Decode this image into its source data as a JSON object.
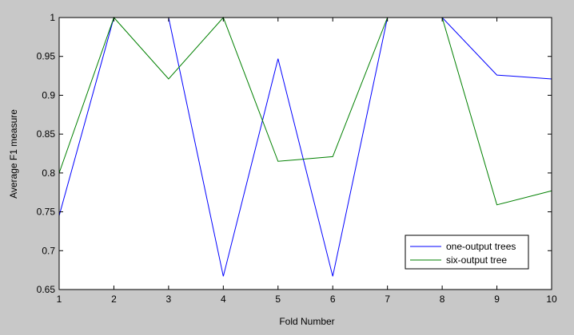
{
  "chart_data": {
    "type": "line",
    "title": "",
    "xlabel": "Fold Number",
    "ylabel": "Average F1 measure",
    "x": [
      1,
      2,
      3,
      4,
      5,
      6,
      7,
      8,
      9,
      10
    ],
    "xlim": [
      1,
      10
    ],
    "ylim": [
      0.65,
      1
    ],
    "xticks": [
      "1",
      "2",
      "3",
      "4",
      "5",
      "6",
      "7",
      "8",
      "9",
      "10"
    ],
    "yticks": [
      "0.65",
      "0.7",
      "0.75",
      "0.8",
      "0.85",
      "0.9",
      "0.95",
      "1"
    ],
    "grid": false,
    "legend_position": "bottom-right",
    "series": [
      {
        "name": "one-output trees",
        "color": "#0000ff",
        "values": [
          0.745,
          1.0,
          1.0,
          0.667,
          0.947,
          0.667,
          1.0,
          1.0,
          0.926,
          0.921
        ]
      },
      {
        "name": "six-output tree",
        "color": "#008000",
        "values": [
          0.8,
          1.0,
          0.921,
          1.0,
          0.815,
          0.821,
          1.0,
          1.0,
          0.759,
          0.777
        ]
      }
    ]
  }
}
